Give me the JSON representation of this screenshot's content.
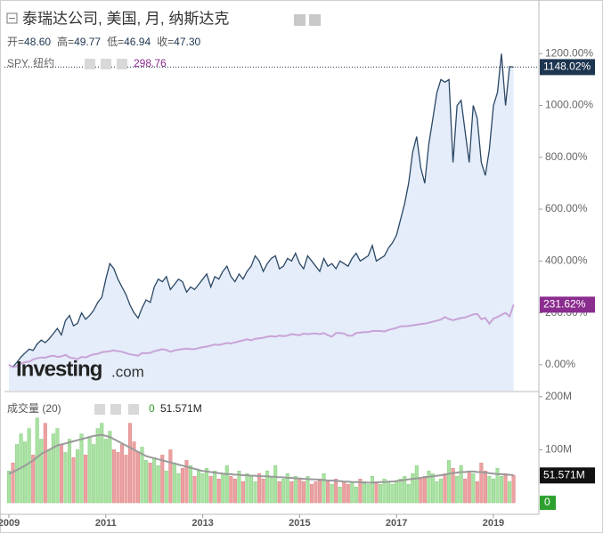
{
  "chart_data": [
    {
      "type": "line",
      "title": "泰瑞达公司, 美国, 月, 纳斯达克",
      "ohlc": [
        {
          "label": "开=",
          "value": "48.60"
        },
        {
          "label": "高=",
          "value": "49.77"
        },
        {
          "label": "低=",
          "value": "46.94"
        },
        {
          "label": "收=",
          "value": "47.30"
        }
      ],
      "watermark": {
        "brand": "Investing",
        "suffix": ".com"
      },
      "categories": [
        "2009",
        null,
        null,
        null,
        null,
        null,
        null,
        null,
        null,
        null,
        null,
        null,
        null,
        null,
        null,
        null,
        null,
        null,
        null,
        null,
        null,
        null,
        null,
        null,
        "2011",
        null,
        null,
        null,
        null,
        null,
        null,
        null,
        null,
        null,
        null,
        null,
        null,
        null,
        null,
        null,
        null,
        null,
        null,
        null,
        null,
        null,
        null,
        null,
        "2013",
        null,
        null,
        null,
        null,
        null,
        null,
        null,
        null,
        null,
        null,
        null,
        null,
        null,
        null,
        null,
        null,
        null,
        null,
        null,
        null,
        null,
        null,
        null,
        "2015",
        null,
        null,
        null,
        null,
        null,
        null,
        null,
        null,
        null,
        null,
        null,
        null,
        null,
        null,
        null,
        null,
        null,
        null,
        null,
        null,
        null,
        null,
        null,
        "2017",
        null,
        null,
        null,
        null,
        null,
        null,
        null,
        null,
        null,
        null,
        null,
        null,
        null,
        null,
        null,
        null,
        null,
        null,
        null,
        null,
        null,
        null,
        null,
        "2019",
        null,
        null,
        null,
        null,
        null
      ],
      "ylim": [
        -100,
        1400
      ],
      "yticks": [
        {
          "value": 0,
          "label": "0.00%"
        },
        {
          "value": 200,
          "label": "200.00%"
        },
        {
          "value": 400,
          "label": "400.00%"
        },
        {
          "value": 600,
          "label": "600.00%"
        },
        {
          "value": 800,
          "label": "800.00%"
        },
        {
          "value": 1000,
          "label": "1000.00%"
        },
        {
          "value": 1200,
          "label": "1200.00%"
        }
      ],
      "series": [
        {
          "name": "泰瑞达公司",
          "color": "#2c4866",
          "fill": "#dde9f7",
          "last_label": "1148.02%",
          "label_color": "#1d3550",
          "values": [
            0,
            -8,
            10,
            30,
            45,
            60,
            55,
            80,
            95,
            85,
            100,
            120,
            140,
            115,
            170,
            190,
            150,
            160,
            200,
            175,
            190,
            210,
            240,
            260,
            330,
            390,
            370,
            330,
            300,
            270,
            230,
            200,
            180,
            220,
            250,
            240,
            300,
            330,
            320,
            340,
            290,
            310,
            330,
            320,
            280,
            300,
            290,
            310,
            330,
            350,
            300,
            340,
            330,
            360,
            380,
            340,
            320,
            350,
            330,
            360,
            380,
            420,
            400,
            360,
            390,
            410,
            420,
            370,
            380,
            410,
            400,
            430,
            390,
            370,
            420,
            400,
            380,
            360,
            410,
            380,
            390,
            370,
            400,
            390,
            380,
            410,
            430,
            400,
            410,
            420,
            460,
            400,
            410,
            420,
            450,
            470,
            500,
            560,
            620,
            700,
            820,
            880,
            760,
            700,
            850,
            950,
            1050,
            1100,
            1090,
            1100,
            780,
            1000,
            1020,
            900,
            780,
            1000,
            950,
            780,
            730,
            830,
            1000,
            1050,
            1200,
            1000,
            1150,
            1148.02
          ]
        },
        {
          "name": "SPY, 纽约",
          "legend_value": "298.76",
          "color": "#c9a3d8",
          "last_label": "231.62%",
          "label_color": "#8b2c8f",
          "values": [
            0,
            -10,
            -5,
            5,
            10,
            12,
            20,
            25,
            28,
            27,
            32,
            35,
            30,
            32,
            38,
            28,
            25,
            22,
            30,
            28,
            35,
            40,
            42,
            48,
            50,
            52,
            55,
            52,
            50,
            45,
            40,
            38,
            35,
            45,
            44,
            46,
            52,
            56,
            60,
            57,
            50,
            55,
            58,
            60,
            62,
            60,
            60,
            64,
            68,
            70,
            74,
            78,
            76,
            80,
            84,
            82,
            86,
            90,
            94,
            98,
            94,
            100,
            102,
            104,
            108,
            110,
            108,
            112,
            110,
            112,
            118,
            116,
            114,
            120,
            118,
            120,
            120,
            118,
            122,
            114,
            108,
            122,
            122,
            120,
            112,
            112,
            122,
            124,
            126,
            126,
            130,
            130,
            130,
            128,
            134,
            138,
            142,
            148,
            148,
            150,
            152,
            154,
            157,
            158,
            162,
            166,
            170,
            174,
            184,
            176,
            172,
            176,
            180,
            182,
            188,
            194,
            196,
            176,
            180,
            158,
            178,
            184,
            192,
            200,
            186,
            231.62
          ]
        }
      ]
    },
    {
      "type": "bar",
      "indicator": "成交量 (20)",
      "indicator_value": "0",
      "last_label": "51.571M",
      "ylim": [
        -20,
        208
      ],
      "yticks": [
        {
          "value": 100,
          "label": "100M"
        },
        {
          "value": 200,
          "label": "200M"
        }
      ],
      "up_color": "#a9e2a2",
      "down_color": "#eba1a1",
      "zero_color": "#2ea02e",
      "series": [
        {
          "name": "成交量",
          "values": [
            60,
            75,
            110,
            130,
            115,
            140,
            90,
            160,
            120,
            150,
            100,
            130,
            140,
            110,
            95,
            120,
            85,
            100,
            130,
            90,
            125,
            110,
            140,
            150,
            120,
            135,
            100,
            95,
            110,
            90,
            150,
            115,
            95,
            105,
            80,
            75,
            85,
            70,
            90,
            60,
            100,
            75,
            55,
            65,
            80,
            70,
            50,
            60,
            55,
            65,
            50,
            60,
            45,
            55,
            70,
            50,
            45,
            60,
            40,
            55,
            50,
            40,
            55,
            45,
            60,
            50,
            70,
            40,
            45,
            55,
            40,
            50,
            45,
            40,
            50,
            35,
            40,
            45,
            55,
            40,
            35,
            45,
            30,
            40,
            35,
            40,
            30,
            45,
            40,
            35,
            50,
            40,
            35,
            45,
            40,
            35,
            40,
            45,
            50,
            35,
            55,
            70,
            45,
            50,
            60,
            55,
            40,
            45,
            55,
            80,
            65,
            50,
            70,
            45,
            60,
            55,
            40,
            75,
            60,
            50,
            45,
            65,
            50,
            55,
            40,
            51.571
          ]
        },
        {
          "name": "MA",
          "color": "#9a9a9a",
          "values": [
            55,
            58,
            62,
            66,
            70,
            75,
            80,
            86,
            92,
            96,
            100,
            104,
            108,
            110,
            112,
            114,
            116,
            118,
            120,
            122,
            124,
            126,
            127,
            128,
            126,
            124,
            120,
            116,
            112,
            108,
            104,
            100,
            96,
            92,
            88,
            86,
            84,
            82,
            80,
            78,
            76,
            74,
            72,
            70,
            68,
            66,
            64,
            62,
            60,
            59,
            58,
            57,
            56,
            55,
            54,
            54,
            53,
            53,
            52,
            52,
            51,
            51,
            50,
            50,
            50,
            49,
            49,
            48,
            48,
            47,
            47,
            46,
            46,
            45,
            45,
            44,
            44,
            43,
            43,
            42,
            42,
            41,
            41,
            40,
            40,
            39,
            39,
            39,
            38,
            38,
            38,
            38,
            39,
            39,
            40,
            40,
            41,
            42,
            43,
            44,
            45,
            46,
            47,
            48,
            49,
            50,
            51,
            52,
            53,
            55,
            56,
            57,
            58,
            58,
            59,
            59,
            58,
            58,
            57,
            56,
            55,
            54,
            54,
            53,
            53,
            52
          ]
        }
      ]
    }
  ]
}
